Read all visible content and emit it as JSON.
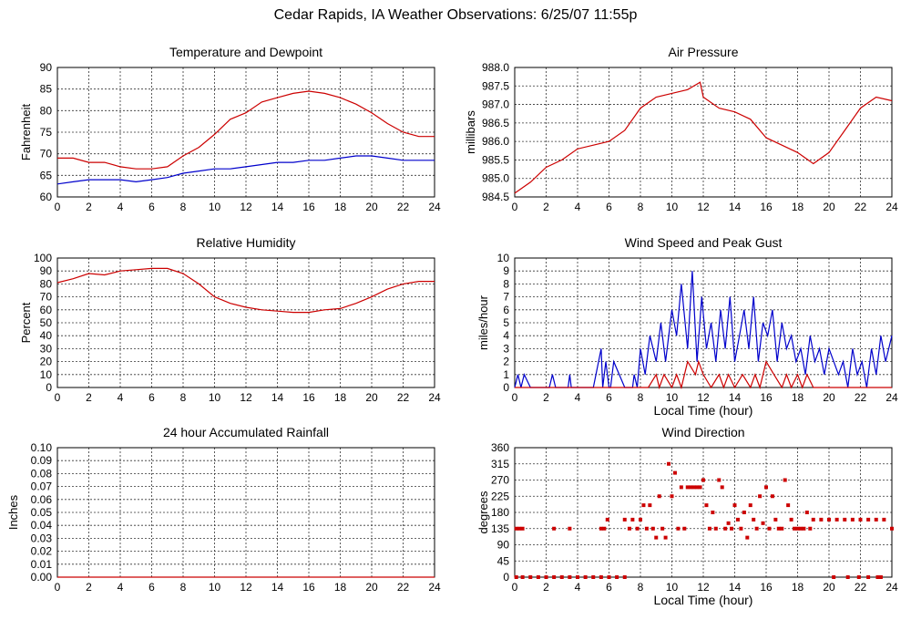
{
  "title": "Cedar Rapids, IA Weather Observations: 6/25/07 11:55p",
  "colors": {
    "temperature": "#cc0000",
    "dewpoint": "#0000cc",
    "pressure": "#cc0000",
    "humidity": "#cc0000",
    "wind_speed": "#0000cc",
    "wind_gust": "#cc0000",
    "rainfall": "#cc0000",
    "wind_direction": "#cc0000",
    "grid": "#333333"
  },
  "chart_data": [
    {
      "type": "line",
      "title": "Temperature and Dewpoint",
      "xlabel": "",
      "ylabel": "Fahrenheit",
      "xlim": [
        0,
        24
      ],
      "ylim": [
        60,
        90
      ],
      "xticks": [
        0,
        2,
        4,
        6,
        8,
        10,
        12,
        14,
        16,
        18,
        20,
        22,
        24
      ],
      "yticks": [
        60,
        65,
        70,
        75,
        80,
        85,
        90
      ],
      "grid": true,
      "series": [
        {
          "role": "temperature",
          "x": [
            0,
            1,
            2,
            3,
            4,
            5,
            6,
            7,
            8,
            9,
            10,
            11,
            12,
            13,
            14,
            15,
            16,
            17,
            18,
            19,
            20,
            21,
            22,
            23,
            24
          ],
          "values": [
            69.0,
            69.0,
            68.0,
            68.0,
            67.0,
            66.5,
            66.5,
            67.0,
            69.5,
            71.5,
            74.5,
            78.0,
            79.5,
            82.0,
            83.0,
            84.0,
            84.5,
            84.0,
            83.0,
            81.5,
            79.5,
            77.0,
            75.0,
            74.0,
            74.0
          ]
        },
        {
          "role": "dewpoint",
          "x": [
            0,
            1,
            2,
            3,
            4,
            5,
            6,
            7,
            8,
            9,
            10,
            11,
            12,
            13,
            14,
            15,
            16,
            17,
            18,
            19,
            20,
            21,
            22,
            23,
            24
          ],
          "values": [
            63.0,
            63.5,
            64.0,
            64.0,
            64.0,
            63.5,
            64.0,
            64.5,
            65.5,
            66.0,
            66.5,
            66.5,
            67.0,
            67.5,
            68.0,
            68.0,
            68.5,
            68.5,
            69.0,
            69.5,
            69.5,
            69.0,
            68.5,
            68.5,
            68.5
          ]
        }
      ]
    },
    {
      "type": "line",
      "title": "Air Pressure",
      "xlabel": "",
      "ylabel": "millibars",
      "xlim": [
        0,
        24
      ],
      "ylim": [
        984.5,
        988.0
      ],
      "xticks": [
        0,
        2,
        4,
        6,
        8,
        10,
        12,
        14,
        16,
        18,
        20,
        22,
        24
      ],
      "yticks": [
        984.5,
        985.0,
        985.5,
        986.0,
        986.5,
        987.0,
        987.5,
        988.0
      ],
      "ytick_labels": [
        "984.5",
        "985.0",
        "985.5",
        "986.0",
        "986.5",
        "987.0",
        "987.5",
        "988.0"
      ],
      "grid": true,
      "series": [
        {
          "role": "pressure",
          "x": [
            0,
            1,
            2,
            3,
            4,
            5,
            6,
            7,
            8,
            9,
            10,
            11,
            11.8,
            12,
            13,
            14,
            15,
            16,
            17,
            18,
            19,
            20,
            21,
            22,
            23,
            24
          ],
          "values": [
            984.6,
            984.9,
            985.3,
            985.5,
            985.8,
            985.9,
            986.0,
            986.3,
            986.9,
            987.2,
            987.3,
            987.4,
            987.6,
            987.2,
            986.9,
            986.8,
            986.6,
            986.1,
            985.9,
            985.7,
            985.4,
            985.7,
            986.3,
            986.9,
            987.2,
            987.1
          ]
        }
      ]
    },
    {
      "type": "line",
      "title": "Relative Humidity",
      "xlabel": "",
      "ylabel": "Percent",
      "xlim": [
        0,
        24
      ],
      "ylim": [
        0,
        100
      ],
      "xticks": [
        0,
        2,
        4,
        6,
        8,
        10,
        12,
        14,
        16,
        18,
        20,
        22,
        24
      ],
      "yticks": [
        0,
        10,
        20,
        30,
        40,
        50,
        60,
        70,
        80,
        90,
        100
      ],
      "grid": true,
      "series": [
        {
          "role": "humidity",
          "x": [
            0,
            1,
            2,
            3,
            4,
            5,
            6,
            7,
            8,
            9,
            10,
            11,
            12,
            13,
            14,
            15,
            16,
            17,
            18,
            19,
            20,
            21,
            22,
            23,
            24
          ],
          "values": [
            81,
            84,
            88,
            87,
            90,
            91,
            92,
            92,
            88,
            80,
            70,
            65,
            62,
            60,
            59,
            58,
            58,
            60,
            61,
            65,
            70,
            76,
            80,
            82,
            82
          ]
        }
      ]
    },
    {
      "type": "line",
      "title": "Wind Speed and Peak Gust",
      "xlabel": "Local Time (hour)",
      "ylabel": "miles/hour",
      "xlim": [
        0,
        24
      ],
      "ylim": [
        0,
        10
      ],
      "xticks": [
        0,
        2,
        4,
        6,
        8,
        10,
        12,
        14,
        16,
        18,
        20,
        22,
        24
      ],
      "yticks": [
        0,
        1,
        2,
        3,
        4,
        5,
        6,
        7,
        8,
        9,
        10
      ],
      "grid": true,
      "series": [
        {
          "role": "wind_speed",
          "x": [
            0,
            0.2,
            0.4,
            0.6,
            1.0,
            2.2,
            2.4,
            2.6,
            3.4,
            3.5,
            3.6,
            5.0,
            5.5,
            5.6,
            5.8,
            6.0,
            6.1,
            6.3,
            7.0,
            7.5,
            7.6,
            7.8,
            8.0,
            8.3,
            8.6,
            9.0,
            9.3,
            9.6,
            10.0,
            10.3,
            10.6,
            11.0,
            11.3,
            11.6,
            11.9,
            12.2,
            12.5,
            12.8,
            13.1,
            13.4,
            13.7,
            14.0,
            14.3,
            14.6,
            14.9,
            15.2,
            15.5,
            15.8,
            16.1,
            16.4,
            16.7,
            17.0,
            17.3,
            17.6,
            17.9,
            18.2,
            18.5,
            18.8,
            19.1,
            19.4,
            19.7,
            20.0,
            20.3,
            20.6,
            20.9,
            21.2,
            21.5,
            21.8,
            22.1,
            22.4,
            22.7,
            23.0,
            23.3,
            23.6,
            24.0
          ],
          "values": [
            0,
            1,
            0,
            1,
            0,
            0,
            1,
            0,
            0,
            1,
            0,
            0,
            3,
            0,
            2,
            0,
            0,
            2,
            0,
            0,
            1,
            0,
            3,
            1,
            4,
            2,
            5,
            2,
            6,
            4,
            8,
            3,
            9,
            2,
            7,
            3,
            5,
            2,
            6,
            3,
            7,
            2,
            4,
            6,
            3,
            7,
            2,
            5,
            4,
            6,
            2,
            5,
            3,
            4,
            2,
            3,
            1,
            4,
            2,
            3,
            1,
            3,
            2,
            1,
            2,
            0,
            3,
            1,
            2,
            0,
            3,
            1,
            4,
            2,
            4
          ]
        },
        {
          "role": "wind_gust",
          "x": [
            0,
            8.5,
            9.0,
            9.2,
            9.5,
            10.0,
            10.3,
            10.6,
            11.0,
            11.5,
            11.7,
            12.0,
            12.5,
            13.0,
            13.3,
            13.6,
            14.0,
            14.5,
            15.0,
            15.3,
            15.6,
            16.0,
            16.5,
            17.0,
            17.3,
            17.6,
            18.0,
            18.3,
            18.6,
            19.0,
            24.0
          ],
          "values": [
            0,
            0,
            1,
            0,
            1,
            0,
            1,
            0,
            2,
            1,
            2,
            1,
            0,
            1,
            0,
            1,
            0,
            1,
            0,
            1,
            0,
            2,
            1,
            0,
            1,
            0,
            1,
            0,
            1,
            0,
            0
          ]
        }
      ]
    },
    {
      "type": "line",
      "title": "24 hour Accumulated Rainfall",
      "xlabel": "",
      "ylabel": "Inches",
      "xlim": [
        0,
        24
      ],
      "ylim": [
        0,
        0.1
      ],
      "xticks": [
        0,
        2,
        4,
        6,
        8,
        10,
        12,
        14,
        16,
        18,
        20,
        22,
        24
      ],
      "yticks": [
        0,
        0.01,
        0.02,
        0.03,
        0.04,
        0.05,
        0.06,
        0.07,
        0.08,
        0.09,
        0.1
      ],
      "ytick_labels": [
        "0.00",
        "0.01",
        "0.02",
        "0.03",
        "0.04",
        "0.05",
        "0.06",
        "0.07",
        "0.08",
        "0.09",
        "0.10"
      ],
      "grid": true,
      "series": [
        {
          "role": "rainfall",
          "x": [
            0,
            24
          ],
          "values": [
            0,
            0
          ]
        }
      ]
    },
    {
      "type": "scatter",
      "title": "Wind Direction",
      "xlabel": "Local Time (hour)",
      "ylabel": "degrees",
      "xlim": [
        0,
        24
      ],
      "ylim": [
        0,
        360
      ],
      "xticks": [
        0,
        2,
        4,
        6,
        8,
        10,
        12,
        14,
        16,
        18,
        20,
        22,
        24
      ],
      "yticks": [
        0,
        45,
        90,
        135,
        180,
        225,
        270,
        315,
        360
      ],
      "grid": true,
      "series": [
        {
          "role": "wind_direction",
          "x": [
            0.1,
            0.3,
            0.5,
            2.5,
            3.5,
            5.5,
            5.7,
            5.9,
            7.0,
            7.3,
            7.5,
            7.8,
            8.0,
            8.2,
            8.4,
            8.6,
            8.8,
            9.0,
            9.2,
            9.4,
            9.6,
            9.8,
            10.0,
            10.2,
            10.4,
            10.6,
            10.8,
            11.0,
            11.2,
            11.4,
            11.6,
            11.8,
            12.0,
            12.2,
            12.4,
            12.6,
            12.8,
            13.0,
            13.2,
            13.4,
            13.6,
            13.8,
            14.0,
            14.2,
            14.4,
            14.6,
            14.8,
            15.0,
            15.2,
            15.4,
            15.6,
            15.8,
            16.0,
            16.2,
            16.4,
            16.6,
            16.8,
            17.0,
            17.2,
            17.4,
            17.6,
            17.8,
            18.0,
            18.2,
            18.4,
            18.6,
            18.8,
            19.0,
            19.5,
            20.0,
            20.5,
            21.0,
            21.5,
            22.0,
            22.5,
            23.0,
            23.5,
            24.0
          ],
          "values": [
            135,
            135,
            135,
            135,
            135,
            135,
            135,
            160,
            160,
            135,
            160,
            135,
            160,
            200,
            135,
            200,
            135,
            110,
            225,
            135,
            110,
            315,
            225,
            290,
            135,
            250,
            135,
            250,
            250,
            250,
            250,
            250,
            270,
            200,
            135,
            180,
            135,
            270,
            250,
            135,
            150,
            135,
            200,
            160,
            135,
            180,
            110,
            200,
            160,
            135,
            225,
            150,
            250,
            135,
            225,
            160,
            135,
            135,
            270,
            200,
            160,
            135,
            135,
            135,
            135,
            180,
            135,
            160,
            160,
            160,
            160,
            160,
            160,
            160,
            160,
            160,
            160,
            135
          ]
        },
        {
          "role": "wind_direction_calm",
          "x": [
            0.1,
            0.5,
            1.0,
            1.5,
            2.0,
            2.5,
            3.0,
            3.5,
            4.0,
            4.5,
            5.0,
            5.5,
            6.0,
            6.5,
            7.0,
            20.3,
            21.2,
            21.9,
            22.5,
            23.1,
            23.3
          ],
          "values": [
            0,
            0,
            0,
            0,
            0,
            0,
            0,
            0,
            0,
            0,
            0,
            0,
            0,
            0,
            0,
            0,
            0,
            0,
            0,
            0,
            0
          ]
        }
      ]
    }
  ]
}
